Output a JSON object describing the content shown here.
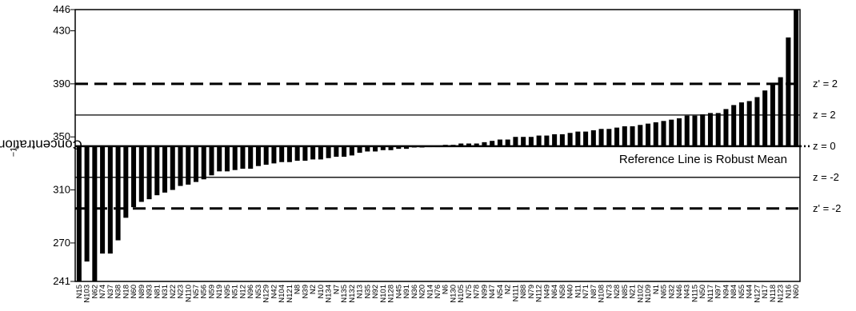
{
  "chart_data": {
    "type": "bar",
    "title": "",
    "xlabel": "",
    "ylabel": "Concentration Ba mg kg",
    "ylabel_superscript": "−1",
    "ylim": [
      241,
      446
    ],
    "yticks": [
      241,
      270,
      310,
      350,
      390,
      430,
      446
    ],
    "baseline": 343,
    "reference_note": "Reference Line is Robust Mean",
    "reference_lines": [
      {
        "value": 390,
        "label": "z' = 2",
        "style": "dashed",
        "width": 3
      },
      {
        "value": 366.5,
        "label": "z = 2",
        "style": "solid",
        "width": 1.3
      },
      {
        "value": 343,
        "label": "z = 0",
        "style": "dotted-ends",
        "width": 2.5
      },
      {
        "value": 319.5,
        "label": "z = -2",
        "style": "solid",
        "width": 1.3
      },
      {
        "value": 296,
        "label": "z' = -2",
        "style": "dashed",
        "width": 3
      }
    ],
    "categories": [
      "N15",
      "N103",
      "N62",
      "N74",
      "N37",
      "N38",
      "N18",
      "N60",
      "N89",
      "N93",
      "N81",
      "N31",
      "N22",
      "N23",
      "N110",
      "N57",
      "N56",
      "N59",
      "N19",
      "N95",
      "N51",
      "N12",
      "N96",
      "N53",
      "N129",
      "N42",
      "N104",
      "N121",
      "N8",
      "N39",
      "N2",
      "N10",
      "N134",
      "N7",
      "N135",
      "N132",
      "N13",
      "N35",
      "N92",
      "N101",
      "N128",
      "N45",
      "N91",
      "N36",
      "N20",
      "N14",
      "N76",
      "N6",
      "N130",
      "N105",
      "N75",
      "N78",
      "N99",
      "N47",
      "N54",
      "N2",
      "N111",
      "N88",
      "N79",
      "N112",
      "N49",
      "N64",
      "N58",
      "N40",
      "N11",
      "N71",
      "N87",
      "N108",
      "N73",
      "N28",
      "N85",
      "N21",
      "N102",
      "N109",
      "N1",
      "N65",
      "N32",
      "N46",
      "N43",
      "N115",
      "N50",
      "N117",
      "N97",
      "N94",
      "N84",
      "N55",
      "N44",
      "N127",
      "N17",
      "N118",
      "N123",
      "N16",
      "N60"
    ],
    "values": [
      240,
      256,
      240,
      262,
      262,
      272,
      289,
      297,
      301,
      303,
      306,
      308,
      310,
      313,
      314,
      316,
      318,
      321,
      324,
      324,
      325,
      326,
      326,
      328,
      329,
      330,
      331,
      331,
      332,
      332,
      333,
      333,
      334,
      335,
      335,
      336,
      338,
      339,
      339,
      340,
      340,
      341,
      341,
      342,
      342,
      343,
      343,
      344,
      344,
      345,
      345,
      345,
      346,
      347,
      348,
      348,
      350,
      350,
      350,
      351,
      351,
      352,
      352,
      353,
      354,
      354,
      355,
      356,
      356,
      357,
      358,
      358,
      359,
      360,
      361,
      362,
      363,
      364,
      366,
      366,
      367,
      368,
      368,
      371,
      374,
      376,
      377,
      380,
      385,
      390,
      395,
      425,
      446
    ]
  }
}
